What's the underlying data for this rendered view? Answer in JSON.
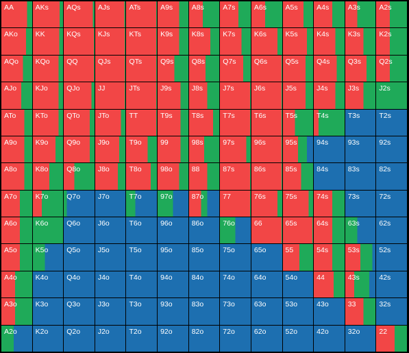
{
  "colors": {
    "raise": "#f24646",
    "call": "#1faa59",
    "fold": "#1d6fb0"
  },
  "rows": [
    [
      {
        "label": "AA",
        "raise": 0.83,
        "call": 0.17,
        "fold": 0
      },
      {
        "label": "AKs",
        "raise": 0.89,
        "call": 0.11,
        "fold": 0
      },
      {
        "label": "AQs",
        "raise": 0.95,
        "call": 0.05,
        "fold": 0
      },
      {
        "label": "AJs",
        "raise": 0.97,
        "call": 0.03,
        "fold": 0
      },
      {
        "label": "ATs",
        "raise": 0.98,
        "call": 0.02,
        "fold": 0
      },
      {
        "label": "A9s",
        "raise": 0.7,
        "call": 0.3,
        "fold": 0
      },
      {
        "label": "A8s",
        "raise": 0.45,
        "call": 0.55,
        "fold": 0
      },
      {
        "label": "A7s",
        "raise": 0.6,
        "call": 0.4,
        "fold": 0
      },
      {
        "label": "A6s",
        "raise": 0.45,
        "call": 0.55,
        "fold": 0
      },
      {
        "label": "A5s",
        "raise": 0.68,
        "call": 0.32,
        "fold": 0
      },
      {
        "label": "A4s",
        "raise": 0.6,
        "call": 0.4,
        "fold": 0
      },
      {
        "label": "A3s",
        "raise": 0.4,
        "call": 0.6,
        "fold": 0
      },
      {
        "label": "A2s",
        "raise": 0.45,
        "call": 0.55,
        "fold": 0
      }
    ],
    [
      {
        "label": "AKo",
        "raise": 0.8,
        "call": 0.2,
        "fold": 0
      },
      {
        "label": "KK",
        "raise": 0.87,
        "call": 0.13,
        "fold": 0
      },
      {
        "label": "KQs",
        "raise": 0.98,
        "call": 0.02,
        "fold": 0
      },
      {
        "label": "KJs",
        "raise": 0.98,
        "call": 0.02,
        "fold": 0
      },
      {
        "label": "KTs",
        "raise": 0.98,
        "call": 0.02,
        "fold": 0
      },
      {
        "label": "K9s",
        "raise": 0.7,
        "call": 0.3,
        "fold": 0
      },
      {
        "label": "K8s",
        "raise": 0.7,
        "call": 0.3,
        "fold": 0
      },
      {
        "label": "K7s",
        "raise": 0.7,
        "call": 0.3,
        "fold": 0
      },
      {
        "label": "K6s",
        "raise": 0.84,
        "call": 0.16,
        "fold": 0
      },
      {
        "label": "K5s",
        "raise": 0.8,
        "call": 0.2,
        "fold": 0
      },
      {
        "label": "K4s",
        "raise": 0.7,
        "call": 0.3,
        "fold": 0
      },
      {
        "label": "K3s",
        "raise": 0.6,
        "call": 0.4,
        "fold": 0
      },
      {
        "label": "K2s",
        "raise": 0.45,
        "call": 0.55,
        "fold": 0
      }
    ],
    [
      {
        "label": "AQo",
        "raise": 0.7,
        "call": 0.3,
        "fold": 0
      },
      {
        "label": "KQo",
        "raise": 0.85,
        "call": 0.15,
        "fold": 0
      },
      {
        "label": "QQ",
        "raise": 0.98,
        "call": 0.02,
        "fold": 0
      },
      {
        "label": "QJs",
        "raise": 0.98,
        "call": 0.02,
        "fold": 0
      },
      {
        "label": "QTs",
        "raise": 0.98,
        "call": 0.02,
        "fold": 0
      },
      {
        "label": "Q9s",
        "raise": 0.55,
        "call": 0.45,
        "fold": 0
      },
      {
        "label": "Q8s",
        "raise": 0.55,
        "call": 0.45,
        "fold": 0
      },
      {
        "label": "Q7s",
        "raise": 0.75,
        "call": 0.25,
        "fold": 0
      },
      {
        "label": "Q6s",
        "raise": 0.98,
        "call": 0.02,
        "fold": 0
      },
      {
        "label": "Q5s",
        "raise": 0.75,
        "call": 0.25,
        "fold": 0
      },
      {
        "label": "Q4s",
        "raise": 0.75,
        "call": 0.25,
        "fold": 0
      },
      {
        "label": "Q3s",
        "raise": 0.7,
        "call": 0.3,
        "fold": 0
      },
      {
        "label": "Q2s",
        "raise": 0.45,
        "call": 0.55,
        "fold": 0
      }
    ],
    [
      {
        "label": "AJo",
        "raise": 0.65,
        "call": 0.35,
        "fold": 0
      },
      {
        "label": "KJo",
        "raise": 0.85,
        "call": 0.15,
        "fold": 0
      },
      {
        "label": "QJo",
        "raise": 0.9,
        "call": 0.1,
        "fold": 0
      },
      {
        "label": "JJ",
        "raise": 0.98,
        "call": 0.02,
        "fold": 0
      },
      {
        "label": "JTs",
        "raise": 0.98,
        "call": 0.02,
        "fold": 0
      },
      {
        "label": "J9s",
        "raise": 0.75,
        "call": 0.25,
        "fold": 0
      },
      {
        "label": "J8s",
        "raise": 0.6,
        "call": 0.4,
        "fold": 0
      },
      {
        "label": "J7s",
        "raise": 0.98,
        "call": 0.02,
        "fold": 0
      },
      {
        "label": "J6s",
        "raise": 0.98,
        "call": 0.02,
        "fold": 0
      },
      {
        "label": "J5s",
        "raise": 0.75,
        "call": 0.25,
        "fold": 0
      },
      {
        "label": "J4s",
        "raise": 0.7,
        "call": 0.3,
        "fold": 0
      },
      {
        "label": "J3s",
        "raise": 0.6,
        "call": 0.4,
        "fold": 0
      },
      {
        "label": "J2s",
        "raise": 0,
        "call": 1,
        "fold": 0
      }
    ],
    [
      {
        "label": "ATo",
        "raise": 0.75,
        "call": 0.25,
        "fold": 0
      },
      {
        "label": "KTo",
        "raise": 0.85,
        "call": 0.15,
        "fold": 0
      },
      {
        "label": "QTo",
        "raise": 0.85,
        "call": 0.15,
        "fold": 0
      },
      {
        "label": "JTo",
        "raise": 0.85,
        "call": 0.15,
        "fold": 0
      },
      {
        "label": "TT",
        "raise": 0.98,
        "call": 0.02,
        "fold": 0
      },
      {
        "label": "T9s",
        "raise": 0.75,
        "call": 0.25,
        "fold": 0
      },
      {
        "label": "T8s",
        "raise": 0.8,
        "call": 0.2,
        "fold": 0
      },
      {
        "label": "T7s",
        "raise": 0.98,
        "call": 0.02,
        "fold": 0
      },
      {
        "label": "T6s",
        "raise": 0.98,
        "call": 0.02,
        "fold": 0
      },
      {
        "label": "T5s",
        "raise": 0.4,
        "call": 0.6,
        "fold": 0
      },
      {
        "label": "T4s",
        "raise": 0.15,
        "call": 0.85,
        "fold": 0
      },
      {
        "label": "T3s",
        "raise": 0,
        "call": 0,
        "fold": 1
      },
      {
        "label": "T2s",
        "raise": 0,
        "call": 0,
        "fold": 1
      }
    ],
    [
      {
        "label": "A9o",
        "raise": 0.75,
        "call": 0.25,
        "fold": 0
      },
      {
        "label": "K9o",
        "raise": 0.75,
        "call": 0.25,
        "fold": 0
      },
      {
        "label": "Q9o",
        "raise": 0.85,
        "call": 0.15,
        "fold": 0
      },
      {
        "label": "J9o",
        "raise": 0.8,
        "call": 0.2,
        "fold": 0
      },
      {
        "label": "T9o",
        "raise": 0.7,
        "call": 0.3,
        "fold": 0
      },
      {
        "label": "99",
        "raise": 0.75,
        "call": 0.25,
        "fold": 0
      },
      {
        "label": "98s",
        "raise": 0.5,
        "call": 0.5,
        "fold": 0
      },
      {
        "label": "97s",
        "raise": 0.85,
        "call": 0.15,
        "fold": 0
      },
      {
        "label": "96s",
        "raise": 0.98,
        "call": 0.02,
        "fold": 0
      },
      {
        "label": "95s",
        "raise": 0.5,
        "call": 0.3,
        "fold": 0.2
      },
      {
        "label": "94s",
        "raise": 0,
        "call": 0,
        "fold": 1
      },
      {
        "label": "93s",
        "raise": 0,
        "call": 0,
        "fold": 1
      },
      {
        "label": "92s",
        "raise": 0,
        "call": 0,
        "fold": 1
      }
    ],
    [
      {
        "label": "A8o",
        "raise": 0.75,
        "call": 0.25,
        "fold": 0
      },
      {
        "label": "K8o",
        "raise": 0.55,
        "call": 0.45,
        "fold": 0
      },
      {
        "label": "Q8o",
        "raise": 0.35,
        "call": 0.65,
        "fold": 0
      },
      {
        "label": "J8o",
        "raise": 0.75,
        "call": 0.25,
        "fold": 0
      },
      {
        "label": "T8o",
        "raise": 0.8,
        "call": 0.2,
        "fold": 0
      },
      {
        "label": "98o",
        "raise": 0.7,
        "call": 0.3,
        "fold": 0
      },
      {
        "label": "88",
        "raise": 0.6,
        "call": 0.4,
        "fold": 0
      },
      {
        "label": "87s",
        "raise": 0.98,
        "call": 0.02,
        "fold": 0
      },
      {
        "label": "86s",
        "raise": 0.98,
        "call": 0.02,
        "fold": 0
      },
      {
        "label": "85s",
        "raise": 0.6,
        "call": 0.4,
        "fold": 0
      },
      {
        "label": "84s",
        "raise": 0,
        "call": 0,
        "fold": 1
      },
      {
        "label": "83s",
        "raise": 0,
        "call": 0,
        "fold": 1
      },
      {
        "label": "82s",
        "raise": 0,
        "call": 0,
        "fold": 1
      }
    ],
    [
      {
        "label": "A7o",
        "raise": 0.6,
        "call": 0.4,
        "fold": 0
      },
      {
        "label": "K7o",
        "raise": 0.3,
        "call": 0.7,
        "fold": 0
      },
      {
        "label": "Q7o",
        "raise": 0,
        "call": 0.1,
        "fold": 0.9
      },
      {
        "label": "J7o",
        "raise": 0,
        "call": 0,
        "fold": 1
      },
      {
        "label": "T7o",
        "raise": 0,
        "call": 0.3,
        "fold": 0.7
      },
      {
        "label": "97o",
        "raise": 0,
        "call": 0.5,
        "fold": 0.5
      },
      {
        "label": "87o",
        "raise": 0.4,
        "call": 0.2,
        "fold": 0.4
      },
      {
        "label": "77",
        "raise": 0.98,
        "call": 0.02,
        "fold": 0
      },
      {
        "label": "76s",
        "raise": 0.85,
        "call": 0.15,
        "fold": 0
      },
      {
        "label": "75s",
        "raise": 0.85,
        "call": 0.15,
        "fold": 0
      },
      {
        "label": "74s",
        "raise": 0.6,
        "call": 0.4,
        "fold": 0
      },
      {
        "label": "73s",
        "raise": 0,
        "call": 0,
        "fold": 1
      },
      {
        "label": "72s",
        "raise": 0,
        "call": 0,
        "fold": 1
      }
    ],
    [
      {
        "label": "A6o",
        "raise": 0.6,
        "call": 0.4,
        "fold": 0
      },
      {
        "label": "K6o",
        "raise": 0,
        "call": 1,
        "fold": 0
      },
      {
        "label": "Q6o",
        "raise": 0,
        "call": 0,
        "fold": 1
      },
      {
        "label": "J6o",
        "raise": 0,
        "call": 0,
        "fold": 1
      },
      {
        "label": "T6o",
        "raise": 0,
        "call": 0,
        "fold": 1
      },
      {
        "label": "96o",
        "raise": 0,
        "call": 0,
        "fold": 1
      },
      {
        "label": "86o",
        "raise": 0,
        "call": 0,
        "fold": 1
      },
      {
        "label": "76o",
        "raise": 0,
        "call": 0.5,
        "fold": 0.5
      },
      {
        "label": "66",
        "raise": 0.98,
        "call": 0.02,
        "fold": 0
      },
      {
        "label": "65s",
        "raise": 0.98,
        "call": 0.02,
        "fold": 0
      },
      {
        "label": "64s",
        "raise": 0.6,
        "call": 0.4,
        "fold": 0
      },
      {
        "label": "63s",
        "raise": 0,
        "call": 0.4,
        "fold": 0.6
      },
      {
        "label": "62s",
        "raise": 0,
        "call": 0,
        "fold": 1
      }
    ],
    [
      {
        "label": "A5o",
        "raise": 0.6,
        "call": 0.4,
        "fold": 0
      },
      {
        "label": "K5o",
        "raise": 0,
        "call": 0.4,
        "fold": 0.6
      },
      {
        "label": "Q5o",
        "raise": 0,
        "call": 0,
        "fold": 1
      },
      {
        "label": "J5o",
        "raise": 0,
        "call": 0,
        "fold": 1
      },
      {
        "label": "T5o",
        "raise": 0,
        "call": 0,
        "fold": 1
      },
      {
        "label": "95o",
        "raise": 0,
        "call": 0,
        "fold": 1
      },
      {
        "label": "85o",
        "raise": 0,
        "call": 0,
        "fold": 1
      },
      {
        "label": "75o",
        "raise": 0,
        "call": 0,
        "fold": 1
      },
      {
        "label": "65o",
        "raise": 0,
        "call": 0,
        "fold": 1
      },
      {
        "label": "55",
        "raise": 0.55,
        "call": 0.45,
        "fold": 0
      },
      {
        "label": "54s",
        "raise": 0.6,
        "call": 0.4,
        "fold": 0
      },
      {
        "label": "53s",
        "raise": 0.5,
        "call": 0.4,
        "fold": 0.1
      },
      {
        "label": "52s",
        "raise": 0,
        "call": 0,
        "fold": 1
      }
    ],
    [
      {
        "label": "A4o",
        "raise": 0.45,
        "call": 0.55,
        "fold": 0
      },
      {
        "label": "K4o",
        "raise": 0,
        "call": 0,
        "fold": 1
      },
      {
        "label": "Q4o",
        "raise": 0,
        "call": 0,
        "fold": 1
      },
      {
        "label": "J4o",
        "raise": 0,
        "call": 0,
        "fold": 1
      },
      {
        "label": "T4o",
        "raise": 0,
        "call": 0,
        "fold": 1
      },
      {
        "label": "94o",
        "raise": 0,
        "call": 0,
        "fold": 1
      },
      {
        "label": "84o",
        "raise": 0,
        "call": 0,
        "fold": 1
      },
      {
        "label": "74o",
        "raise": 0,
        "call": 0,
        "fold": 1
      },
      {
        "label": "64o",
        "raise": 0,
        "call": 0,
        "fold": 1
      },
      {
        "label": "54o",
        "raise": 0,
        "call": 0,
        "fold": 1
      },
      {
        "label": "44",
        "raise": 0.65,
        "call": 0.35,
        "fold": 0
      },
      {
        "label": "43s",
        "raise": 0.3,
        "call": 0.5,
        "fold": 0.2
      },
      {
        "label": "42s",
        "raise": 0,
        "call": 0,
        "fold": 1
      }
    ],
    [
      {
        "label": "A3o",
        "raise": 0.45,
        "call": 0.55,
        "fold": 0
      },
      {
        "label": "K3o",
        "raise": 0,
        "call": 0,
        "fold": 1
      },
      {
        "label": "Q3o",
        "raise": 0,
        "call": 0,
        "fold": 1
      },
      {
        "label": "J3o",
        "raise": 0,
        "call": 0,
        "fold": 1
      },
      {
        "label": "T3o",
        "raise": 0,
        "call": 0,
        "fold": 1
      },
      {
        "label": "93o",
        "raise": 0,
        "call": 0,
        "fold": 1
      },
      {
        "label": "83o",
        "raise": 0,
        "call": 0,
        "fold": 1
      },
      {
        "label": "73o",
        "raise": 0,
        "call": 0,
        "fold": 1
      },
      {
        "label": "63o",
        "raise": 0,
        "call": 0,
        "fold": 1
      },
      {
        "label": "53o",
        "raise": 0,
        "call": 0,
        "fold": 1
      },
      {
        "label": "43o",
        "raise": 0,
        "call": 0,
        "fold": 1
      },
      {
        "label": "33",
        "raise": 0.6,
        "call": 0.4,
        "fold": 0
      },
      {
        "label": "32s",
        "raise": 0,
        "call": 0,
        "fold": 1
      }
    ],
    [
      {
        "label": "A2o",
        "raise": 0,
        "call": 0.4,
        "fold": 0.6
      },
      {
        "label": "K2o",
        "raise": 0,
        "call": 0,
        "fold": 1
      },
      {
        "label": "Q2o",
        "raise": 0,
        "call": 0,
        "fold": 1
      },
      {
        "label": "J2o",
        "raise": 0,
        "call": 0,
        "fold": 1
      },
      {
        "label": "T2o",
        "raise": 0,
        "call": 0,
        "fold": 1
      },
      {
        "label": "92o",
        "raise": 0,
        "call": 0,
        "fold": 1
      },
      {
        "label": "82o",
        "raise": 0,
        "call": 0,
        "fold": 1
      },
      {
        "label": "72o",
        "raise": 0,
        "call": 0,
        "fold": 1
      },
      {
        "label": "62o",
        "raise": 0,
        "call": 0,
        "fold": 1
      },
      {
        "label": "52o",
        "raise": 0,
        "call": 0,
        "fold": 1
      },
      {
        "label": "42o",
        "raise": 0,
        "call": 0,
        "fold": 1
      },
      {
        "label": "32o",
        "raise": 0,
        "call": 0,
        "fold": 1
      },
      {
        "label": "22",
        "raise": 0.6,
        "call": 0.4,
        "fold": 0
      }
    ]
  ]
}
